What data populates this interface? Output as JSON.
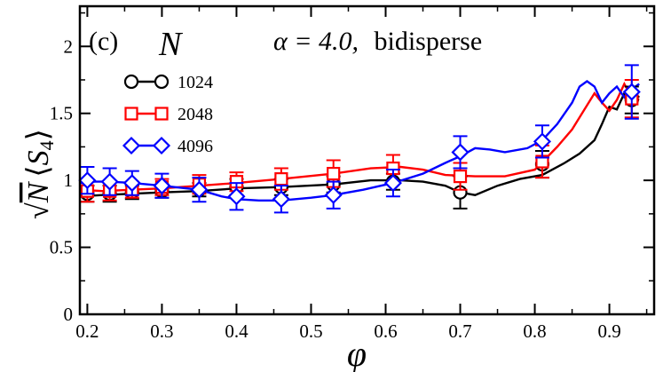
{
  "chart_data": {
    "type": "line",
    "panel_label": "(c)",
    "legend_title": "N",
    "annotation": {
      "prefix": "α = 4.0,",
      "suffix": "bidisperse"
    },
    "xlabel": "φ",
    "ylabel": {
      "pre": "√",
      "main": "N",
      "bracket_open": "⟨",
      "s": "S",
      "sub": "4",
      "bracket_close": "⟩"
    },
    "xlim": [
      0.19,
      0.96
    ],
    "ylim": [
      0,
      2.3
    ],
    "xticks": [
      0.2,
      0.3,
      0.4,
      0.5,
      0.6,
      0.7,
      0.8,
      0.9
    ],
    "xtick_labels": [
      "0.2",
      "0.3",
      "0.4",
      "0.5",
      "0.6",
      "0.7",
      "0.8",
      "0.9"
    ],
    "yticks": [
      0,
      0.5,
      1,
      1.5,
      2
    ],
    "ytick_labels": [
      "0",
      "0.5",
      "1",
      "1.5",
      "2"
    ],
    "series": [
      {
        "name": "1024",
        "color": "#000000",
        "marker": "circle",
        "curve": [
          [
            0.19,
            0.88
          ],
          [
            0.22,
            0.89
          ],
          [
            0.26,
            0.9
          ],
          [
            0.3,
            0.91
          ],
          [
            0.35,
            0.92
          ],
          [
            0.4,
            0.94
          ],
          [
            0.46,
            0.95
          ],
          [
            0.53,
            0.97
          ],
          [
            0.58,
            1.0
          ],
          [
            0.62,
            1.0
          ],
          [
            0.65,
            0.99
          ],
          [
            0.68,
            0.96
          ],
          [
            0.7,
            0.91
          ],
          [
            0.72,
            0.89
          ],
          [
            0.75,
            0.96
          ],
          [
            0.78,
            1.01
          ],
          [
            0.81,
            1.04
          ],
          [
            0.84,
            1.13
          ],
          [
            0.86,
            1.2
          ],
          [
            0.88,
            1.3
          ],
          [
            0.89,
            1.42
          ],
          [
            0.9,
            1.55
          ],
          [
            0.91,
            1.53
          ],
          [
            0.92,
            1.65
          ],
          [
            0.93,
            1.58
          ],
          [
            0.94,
            1.63
          ]
        ],
        "points": [
          [
            0.2,
            0.9,
            0.06
          ],
          [
            0.23,
            0.9,
            0.06
          ],
          [
            0.26,
            0.91,
            0.05
          ],
          [
            0.3,
            0.92,
            0.05
          ],
          [
            0.35,
            0.93,
            0.05
          ],
          [
            0.4,
            0.95,
            0.06
          ],
          [
            0.46,
            0.95,
            0.06
          ],
          [
            0.53,
            0.97,
            0.06
          ],
          [
            0.61,
            0.99,
            0.06
          ],
          [
            0.7,
            0.91,
            0.12
          ],
          [
            0.81,
            1.12,
            0.1
          ],
          [
            0.93,
            1.6,
            0.1
          ]
        ]
      },
      {
        "name": "2048",
        "color": "#ff0000",
        "marker": "square",
        "curve": [
          [
            0.19,
            0.93
          ],
          [
            0.22,
            0.92
          ],
          [
            0.26,
            0.93
          ],
          [
            0.3,
            0.94
          ],
          [
            0.35,
            0.96
          ],
          [
            0.4,
            0.98
          ],
          [
            0.46,
            1.01
          ],
          [
            0.53,
            1.05
          ],
          [
            0.58,
            1.09
          ],
          [
            0.62,
            1.1
          ],
          [
            0.65,
            1.08
          ],
          [
            0.68,
            1.04
          ],
          [
            0.72,
            1.03
          ],
          [
            0.76,
            1.03
          ],
          [
            0.8,
            1.08
          ],
          [
            0.83,
            1.25
          ],
          [
            0.85,
            1.38
          ],
          [
            0.87,
            1.56
          ],
          [
            0.88,
            1.65
          ],
          [
            0.89,
            1.58
          ],
          [
            0.9,
            1.52
          ],
          [
            0.91,
            1.6
          ],
          [
            0.92,
            1.72
          ],
          [
            0.93,
            1.62
          ],
          [
            0.94,
            1.6
          ]
        ],
        "points": [
          [
            0.2,
            0.92,
            0.08
          ],
          [
            0.23,
            0.92,
            0.07
          ],
          [
            0.26,
            0.93,
            0.06
          ],
          [
            0.3,
            0.95,
            0.06
          ],
          [
            0.35,
            0.97,
            0.07
          ],
          [
            0.4,
            0.99,
            0.07
          ],
          [
            0.46,
            1.01,
            0.08
          ],
          [
            0.53,
            1.05,
            0.1
          ],
          [
            0.61,
            1.09,
            0.1
          ],
          [
            0.7,
            1.03,
            0.1
          ],
          [
            0.81,
            1.14,
            0.12
          ],
          [
            0.93,
            1.61,
            0.14
          ]
        ]
      },
      {
        "name": "4096",
        "color": "#0000ff",
        "marker": "diamond",
        "curve": [
          [
            0.19,
            0.98
          ],
          [
            0.21,
            0.99
          ],
          [
            0.23,
            0.99
          ],
          [
            0.26,
            0.98
          ],
          [
            0.3,
            0.96
          ],
          [
            0.35,
            0.93
          ],
          [
            0.38,
            0.88
          ],
          [
            0.4,
            0.86
          ],
          [
            0.43,
            0.85
          ],
          [
            0.46,
            0.85
          ],
          [
            0.5,
            0.87
          ],
          [
            0.53,
            0.89
          ],
          [
            0.57,
            0.93
          ],
          [
            0.61,
            0.98
          ],
          [
            0.65,
            1.05
          ],
          [
            0.68,
            1.13
          ],
          [
            0.7,
            1.18
          ],
          [
            0.72,
            1.24
          ],
          [
            0.74,
            1.23
          ],
          [
            0.76,
            1.21
          ],
          [
            0.79,
            1.24
          ],
          [
            0.81,
            1.3
          ],
          [
            0.83,
            1.42
          ],
          [
            0.85,
            1.58
          ],
          [
            0.86,
            1.7
          ],
          [
            0.87,
            1.74
          ],
          [
            0.88,
            1.7
          ],
          [
            0.89,
            1.58
          ],
          [
            0.9,
            1.65
          ],
          [
            0.91,
            1.7
          ],
          [
            0.92,
            1.62
          ],
          [
            0.93,
            1.68
          ],
          [
            0.94,
            1.72
          ]
        ],
        "points": [
          [
            0.2,
            1.0,
            0.1
          ],
          [
            0.23,
            0.99,
            0.1
          ],
          [
            0.26,
            0.98,
            0.09
          ],
          [
            0.3,
            0.96,
            0.09
          ],
          [
            0.35,
            0.93,
            0.09
          ],
          [
            0.4,
            0.88,
            0.1
          ],
          [
            0.46,
            0.86,
            0.1
          ],
          [
            0.53,
            0.89,
            0.1
          ],
          [
            0.61,
            0.98,
            0.1
          ],
          [
            0.7,
            1.21,
            0.12
          ],
          [
            0.81,
            1.29,
            0.12
          ],
          [
            0.93,
            1.66,
            0.2
          ]
        ]
      }
    ]
  }
}
